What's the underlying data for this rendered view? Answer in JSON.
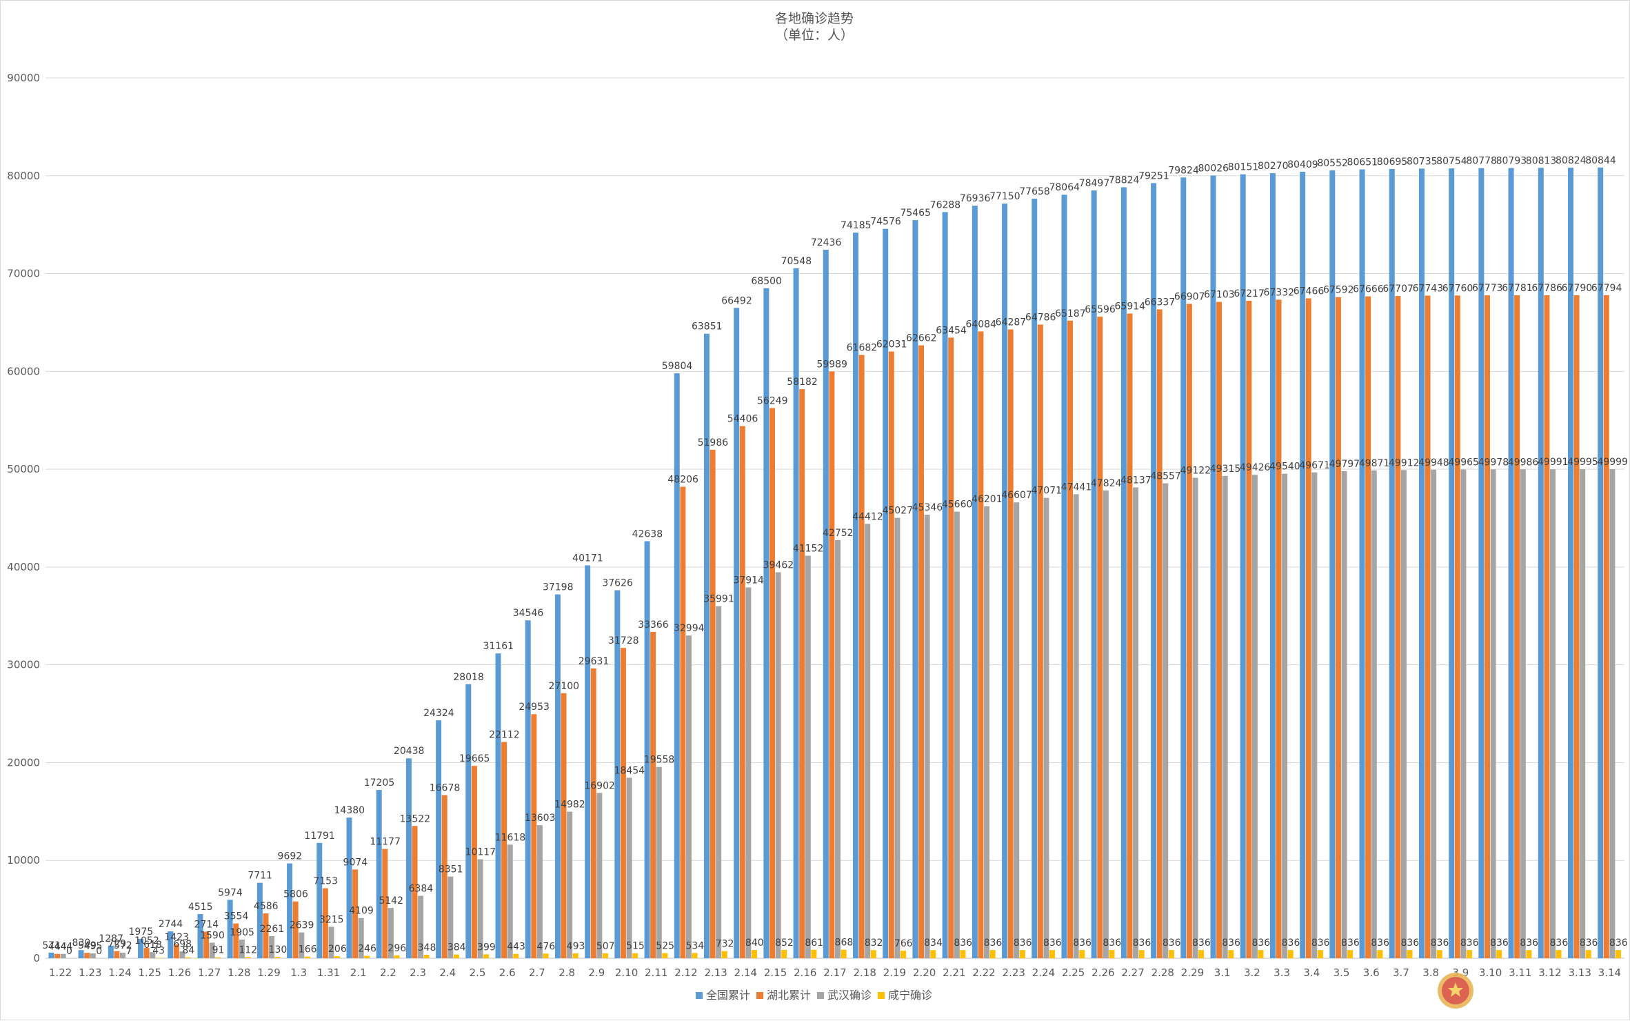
{
  "chart_data": {
    "type": "bar",
    "title": "各地确诊趋势",
    "subtitle": "（单位：人）",
    "xlabel": "",
    "ylabel": "",
    "ylim": [
      0,
      90000
    ],
    "yticks": [
      "0",
      "10000",
      "20000",
      "30000",
      "40000",
      "50000",
      "60000",
      "70000",
      "80000",
      "90000"
    ],
    "grid": true,
    "legend_position": "bottom",
    "categories": [
      "1.22",
      "1.23",
      "1.24",
      "1.25",
      "1.26",
      "1.27",
      "1.28",
      "1.29",
      "1.3",
      "1.31",
      "2.1",
      "2.2",
      "2.3",
      "2.4",
      "2.5",
      "2.6",
      "2.7",
      "2.8",
      "2.9",
      "2.10",
      "2.11",
      "2.12",
      "2.13",
      "2.14",
      "2.15",
      "2.16",
      "2.17",
      "2.18",
      "2.19",
      "2.20",
      "2.21",
      "2.22",
      "2.23",
      "2.24",
      "2.25",
      "2.26",
      "2.27",
      "2.28",
      "2.29",
      "3.1",
      "3.2",
      "3.3",
      "3.4",
      "3.5",
      "3.6",
      "3.7",
      "3.8",
      "3.9",
      "3.10",
      "3.11",
      "3.12",
      "3.13",
      "3.14"
    ],
    "series": [
      {
        "name": "全国累计",
        "color": "#5b9bd5",
        "values": [
          571,
          830,
          1287,
          1975,
          2744,
          4515,
          5974,
          7711,
          9692,
          11791,
          14380,
          17205,
          20438,
          24324,
          28018,
          31161,
          34546,
          37198,
          40171,
          37626,
          42638,
          59804,
          63851,
          66492,
          68500,
          70548,
          72436,
          74185,
          74576,
          75465,
          76288,
          76936,
          77150,
          77658,
          78064,
          78497,
          78824,
          79251,
          79824,
          80026,
          80151,
          80270,
          80409,
          80552,
          80651,
          80695,
          80735,
          80754,
          80778,
          80793,
          80813,
          80824,
          80844
        ]
      },
      {
        "name": "湖北累计",
        "color": "#ed7d31",
        "values": [
          444,
          549,
          729,
          1052,
          1423,
          2714,
          3554,
          4586,
          5806,
          7153,
          9074,
          11177,
          13522,
          16678,
          19665,
          22112,
          24953,
          27100,
          29631,
          31728,
          33366,
          48206,
          51986,
          54406,
          56249,
          58182,
          59989,
          61682,
          62031,
          62662,
          63454,
          64084,
          64287,
          64786,
          65187,
          65596,
          65914,
          66337,
          66907,
          67103,
          67217,
          67332,
          67466,
          67592,
          67666,
          67707,
          67743,
          67760,
          67773,
          67781,
          67786,
          67790,
          67794
        ]
      },
      {
        "name": "武汉确诊",
        "color": "#a5a5a5",
        "values": [
          444,
          495,
          572,
          618,
          698,
          1590,
          1905,
          2261,
          2639,
          3215,
          4109,
          5142,
          6384,
          8351,
          10117,
          11618,
          13603,
          14982,
          16902,
          18454,
          19558,
          32994,
          35991,
          37914,
          39462,
          41152,
          42752,
          44412,
          45027,
          45346,
          45660,
          46201,
          46607,
          47071,
          47441,
          47824,
          48137,
          48557,
          49122,
          49315,
          49426,
          49540,
          49671,
          49797,
          49871,
          49912,
          49948,
          49965,
          49978,
          49986,
          49991,
          49995,
          49999
        ]
      },
      {
        "name": "咸宁确诊",
        "color": "#ffc000",
        "values": [
          0,
          0,
          7,
          43,
          84,
          91,
          112,
          130,
          166,
          206,
          246,
          296,
          348,
          384,
          399,
          443,
          476,
          493,
          507,
          515,
          525,
          534,
          732,
          840,
          852,
          861,
          868,
          832,
          766,
          834,
          836,
          836,
          836,
          836,
          836,
          836,
          836,
          836,
          836,
          836,
          836,
          836,
          836,
          836,
          836,
          836,
          836,
          836,
          836,
          836,
          836,
          836,
          836
        ]
      }
    ]
  }
}
